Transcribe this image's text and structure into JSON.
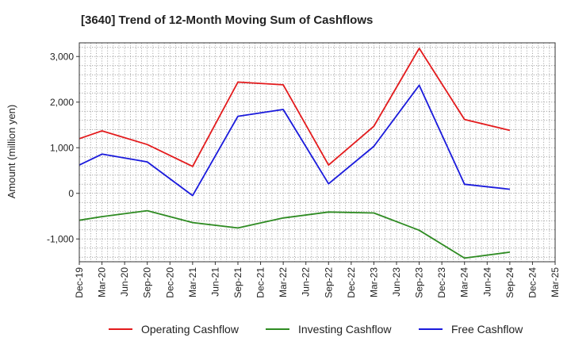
{
  "chart_data": {
    "type": "line",
    "title": "[3640]  Trend of 12-Month Moving Sum of Cashflows",
    "xlabel": "",
    "ylabel": "Amount (million yen)",
    "categories": [
      "Dec-19",
      "Mar-20",
      "Jun-20",
      "Sep-20",
      "Dec-20",
      "Mar-21",
      "Jun-21",
      "Sep-21",
      "Dec-21",
      "Mar-22",
      "Jun-22",
      "Sep-22",
      "Dec-22",
      "Mar-23",
      "Jun-23",
      "Sep-23",
      "Dec-23",
      "Mar-24",
      "Jun-24",
      "Sep-24",
      "Dec-24",
      "Mar-25"
    ],
    "ylim": [
      -1500,
      3300
    ],
    "yticks": [
      -1000,
      0,
      1000,
      2000,
      3000
    ],
    "ytick_labels": [
      "-1,000",
      "0",
      "1,000",
      "2,000",
      "3,000"
    ],
    "grid": true,
    "legend_position": "bottom",
    "series": [
      {
        "name": "Operating Cashflow",
        "color": "#e31a1c",
        "values": [
          1200,
          1370,
          null,
          1070,
          null,
          590,
          null,
          2440,
          null,
          2380,
          null,
          620,
          null,
          1470,
          null,
          3180,
          null,
          1620,
          null,
          1380,
          null,
          null
        ]
      },
      {
        "name": "Investing Cashflow",
        "color": "#2e8b22",
        "values": [
          -590,
          -510,
          null,
          -380,
          null,
          -640,
          null,
          -760,
          null,
          -540,
          null,
          -410,
          null,
          -430,
          null,
          -810,
          null,
          -1420,
          null,
          -1290,
          null,
          null
        ]
      },
      {
        "name": "Free Cashflow",
        "color": "#1a1adc",
        "values": [
          620,
          860,
          null,
          690,
          null,
          -50,
          null,
          1690,
          null,
          1840,
          null,
          210,
          null,
          1030,
          null,
          2370,
          null,
          200,
          null,
          90,
          null,
          null
        ]
      }
    ]
  }
}
